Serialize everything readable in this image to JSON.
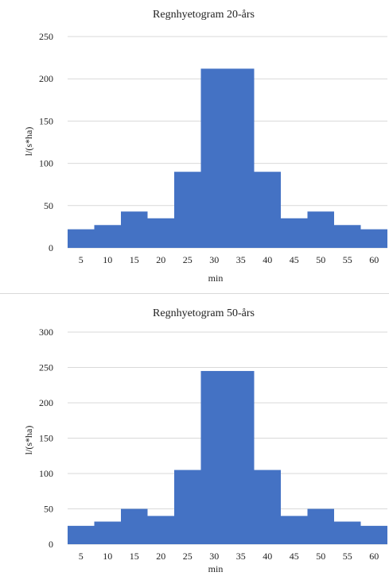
{
  "chart_data": [
    {
      "type": "bar",
      "title": "Regnhyetogram 20-års",
      "xlabel": "min",
      "ylabel": "l/(s*ha)",
      "categories": [
        "5",
        "10",
        "15",
        "20",
        "25",
        "30",
        "35",
        "40",
        "45",
        "50",
        "55",
        "60"
      ],
      "values": [
        22,
        27,
        43,
        35,
        90,
        212,
        212,
        90,
        35,
        43,
        27,
        22
      ],
      "ylim": [
        0,
        250
      ],
      "yticks": [
        "0",
        "50",
        "100",
        "150",
        "200",
        "250"
      ],
      "grid": true,
      "bar_color": "#4472C4"
    },
    {
      "type": "bar",
      "title": "Regnhyetogram 50-års",
      "xlabel": "min",
      "ylabel": "l/(s*ha)",
      "categories": [
        "5",
        "10",
        "15",
        "20",
        "25",
        "30",
        "35",
        "40",
        "45",
        "50",
        "55",
        "60"
      ],
      "values": [
        26,
        32,
        50,
        40,
        105,
        245,
        245,
        105,
        40,
        50,
        32,
        26
      ],
      "ylim": [
        0,
        300
      ],
      "yticks": [
        "0",
        "50",
        "100",
        "150",
        "200",
        "250",
        "300"
      ],
      "grid": true,
      "bar_color": "#4472C4"
    }
  ]
}
